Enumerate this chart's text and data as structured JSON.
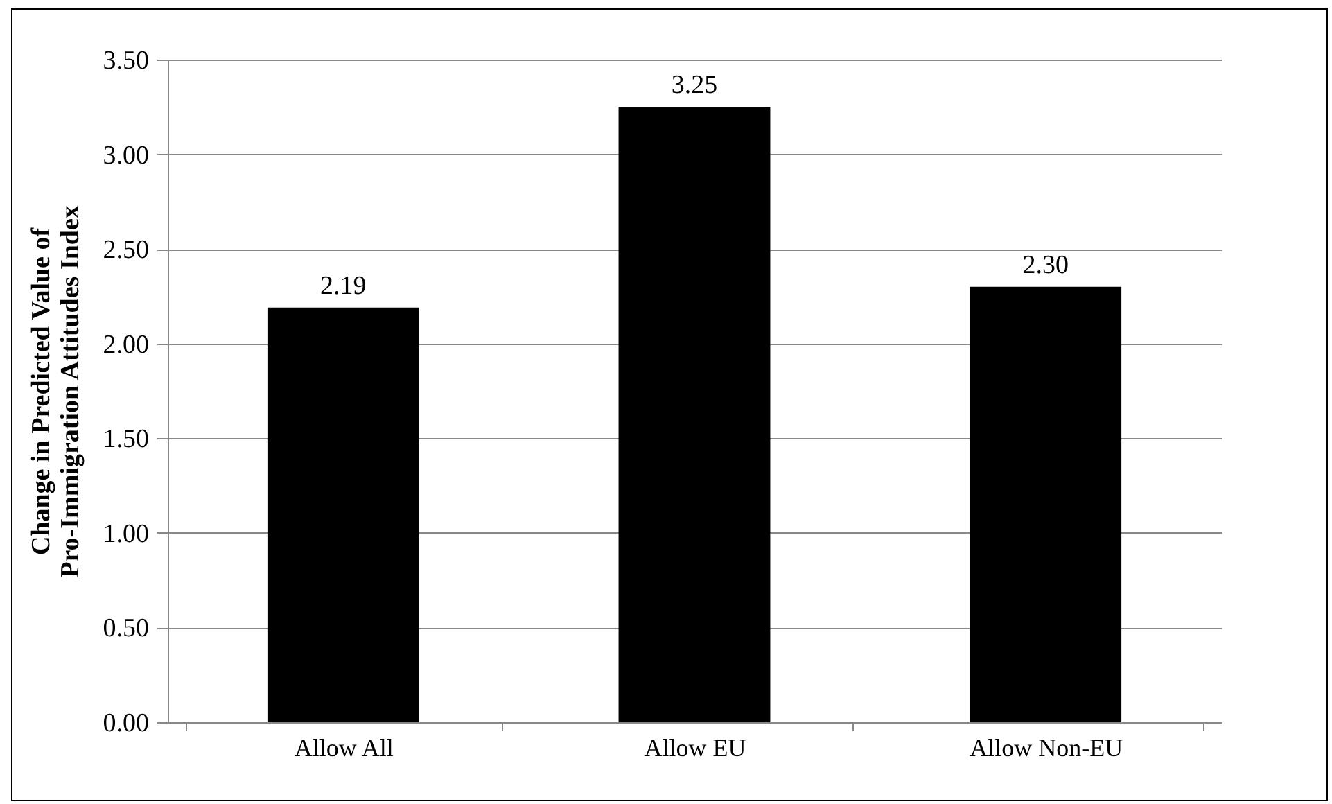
{
  "chart_data": {
    "type": "bar",
    "ylabel": "Change in Predicted Value of\nPro-Immigration Attitudes Index",
    "categories": [
      "Allow All",
      "Allow EU",
      "Allow Non-EU"
    ],
    "values": [
      2.19,
      3.25,
      2.3
    ],
    "color": "#000000",
    "ylim": [
      0,
      3.5
    ],
    "yticks": [
      {
        "value": 0,
        "label": "0.00"
      },
      {
        "value": 0.5,
        "label": "0.50"
      },
      {
        "value": 1,
        "label": "1.00"
      },
      {
        "value": 1.5,
        "label": "1.50"
      },
      {
        "value": 2,
        "label": "2.00"
      },
      {
        "value": 2.5,
        "label": "2.50"
      },
      {
        "value": 3,
        "label": "3.00"
      },
      {
        "value": 3.5,
        "label": "3.50"
      }
    ],
    "grid": "y",
    "value_labels": [
      "2.19",
      "3.25",
      "2.30"
    ]
  }
}
